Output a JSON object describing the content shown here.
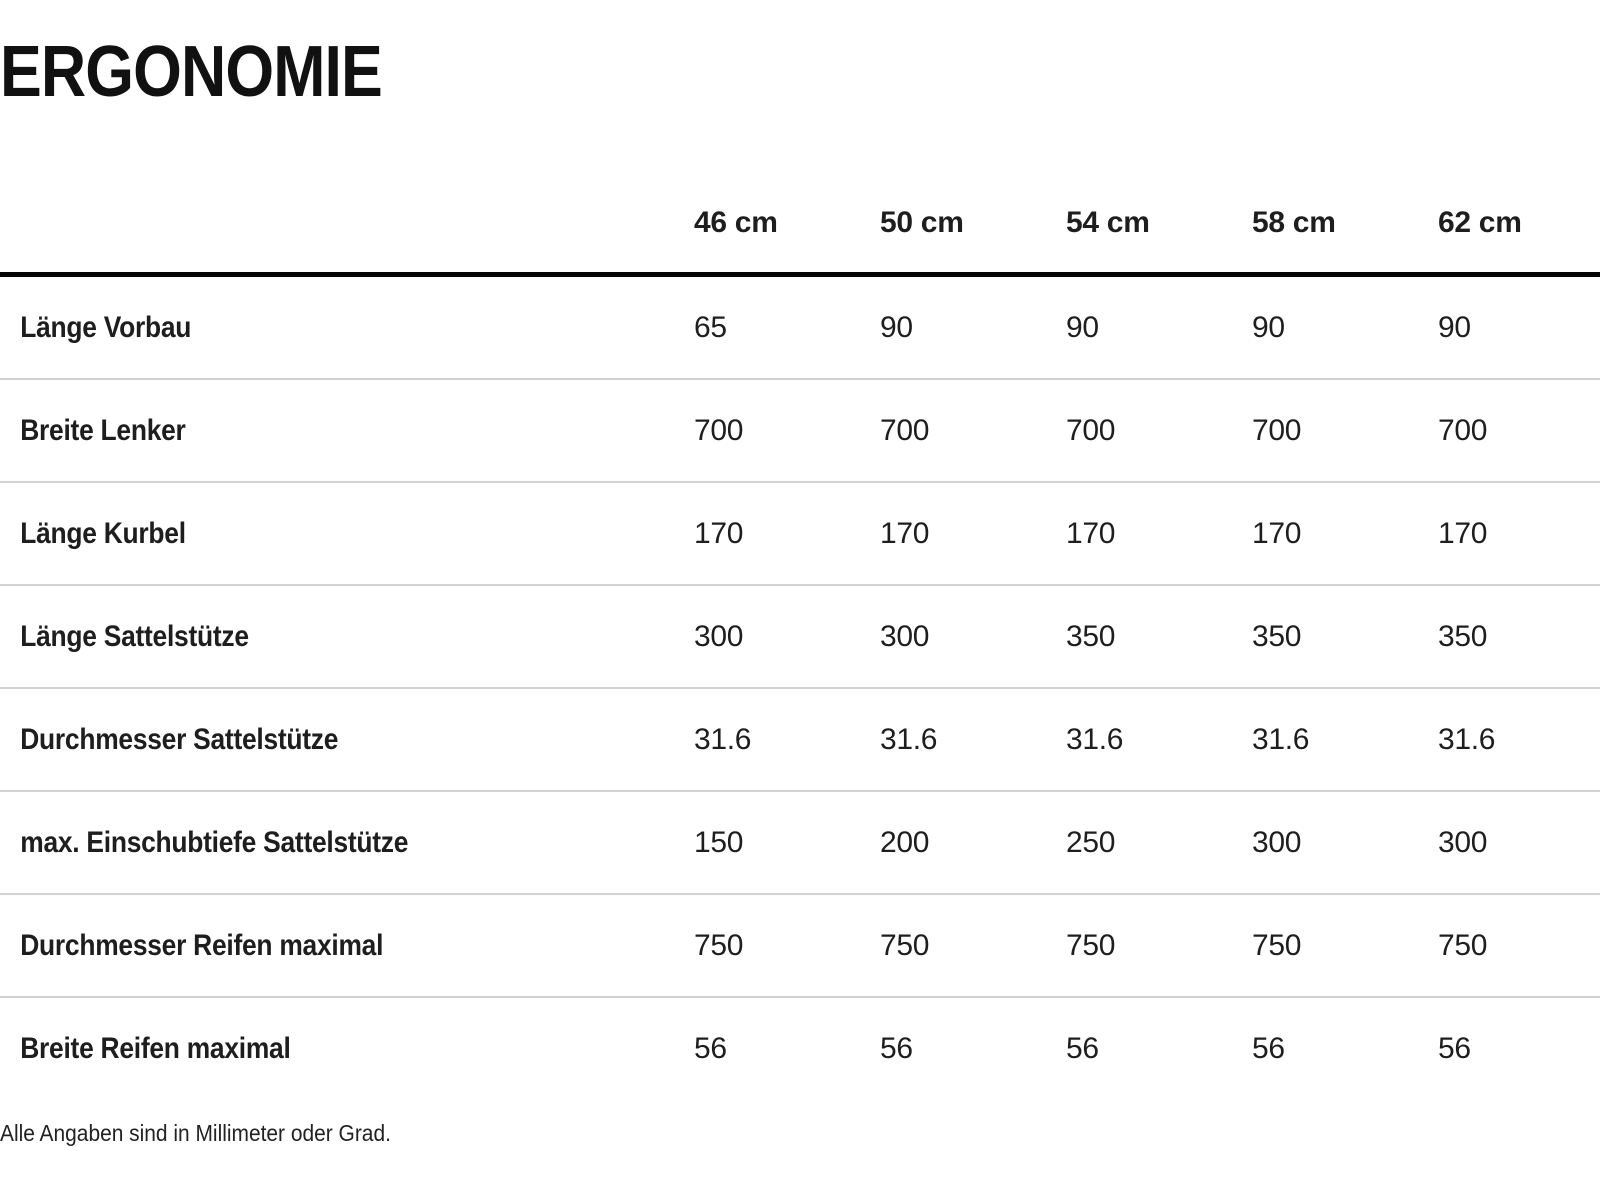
{
  "title": "ERGONOMIE",
  "table": {
    "columns": [
      "46 cm",
      "50 cm",
      "54 cm",
      "58 cm",
      "62 cm"
    ],
    "rows": [
      {
        "label": "Länge Vorbau",
        "values": [
          "65",
          "90",
          "90",
          "90",
          "90"
        ]
      },
      {
        "label": "Breite Lenker",
        "values": [
          "700",
          "700",
          "700",
          "700",
          "700"
        ]
      },
      {
        "label": "Länge Kurbel",
        "values": [
          "170",
          "170",
          "170",
          "170",
          "170"
        ]
      },
      {
        "label": "Länge Sattelstütze",
        "values": [
          "300",
          "300",
          "350",
          "350",
          "350"
        ]
      },
      {
        "label": "Durchmesser Sattelstütze",
        "values": [
          "31.6",
          "31.6",
          "31.6",
          "31.6",
          "31.6"
        ]
      },
      {
        "label": "max. Einschubtiefe Sattelstütze",
        "values": [
          "150",
          "200",
          "250",
          "300",
          "300"
        ]
      },
      {
        "label": "Durchmesser Reifen maximal",
        "values": [
          "750",
          "750",
          "750",
          "750",
          "750"
        ]
      },
      {
        "label": "Breite Reifen maximal",
        "values": [
          "56",
          "56",
          "56",
          "56",
          "56"
        ]
      }
    ]
  },
  "footnote": "Alle Angaben sind in Millimeter oder Grad.",
  "colors": {
    "background": "#ffffff",
    "text": "#1e1e1e",
    "title": "#111111",
    "header_rule": "#050505",
    "row_separator": "#d2d2d2"
  }
}
